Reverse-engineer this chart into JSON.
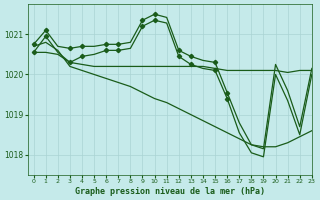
{
  "title": "Graphe pression niveau de la mer (hPa)",
  "background_color": "#c5eaea",
  "grid_color": "#aad4d4",
  "line_color": "#1a5c1a",
  "xlim": [
    -0.5,
    23
  ],
  "ylim": [
    1017.5,
    1021.75
  ],
  "yticks": [
    1018,
    1019,
    1020,
    1021
  ],
  "xticks": [
    0,
    1,
    2,
    3,
    4,
    5,
    6,
    7,
    8,
    9,
    10,
    11,
    12,
    13,
    14,
    15,
    16,
    17,
    18,
    19,
    20,
    21,
    22,
    23
  ],
  "series": {
    "line1_with_markers": [
      1020.75,
      1021.1,
      1020.7,
      1020.65,
      1020.7,
      1020.7,
      1020.75,
      1020.75,
      1020.8,
      1021.35,
      1021.5,
      1021.42,
      1020.6,
      1020.45,
      1020.35,
      1020.3,
      1019.55,
      1018.8,
      1018.25,
      1018.15,
      1020.25,
      1019.6,
      1018.7,
      1020.15
    ],
    "line2_with_markers": [
      1020.55,
      1020.95,
      1020.55,
      1020.3,
      1020.45,
      1020.5,
      1020.6,
      1020.6,
      1020.65,
      1021.2,
      1021.35,
      1021.28,
      1020.45,
      1020.25,
      1020.15,
      1020.1,
      1019.4,
      1018.55,
      1018.05,
      1017.95,
      1020.0,
      1019.35,
      1018.5,
      1020.0
    ],
    "line3_flat": [
      1020.55,
      1020.55,
      1020.5,
      1020.3,
      1020.25,
      1020.2,
      1020.2,
      1020.2,
      1020.2,
      1020.2,
      1020.2,
      1020.2,
      1020.2,
      1020.2,
      1020.2,
      1020.15,
      1020.1,
      1020.1,
      1020.1,
      1020.1,
      1020.1,
      1020.05,
      1020.1,
      1020.1
    ],
    "line4_diagonal": [
      1020.7,
      1020.8,
      1020.6,
      1020.2,
      1020.1,
      1020.0,
      1019.9,
      1019.8,
      1019.7,
      1019.55,
      1019.4,
      1019.3,
      1019.15,
      1019.0,
      1018.85,
      1018.7,
      1018.55,
      1018.4,
      1018.25,
      1018.2,
      1018.2,
      1018.3,
      1018.45,
      1018.6
    ]
  },
  "markers1_x": [
    0,
    1,
    3,
    4,
    6,
    7,
    9,
    10,
    12,
    13,
    15,
    16
  ],
  "markers2_x": [
    0,
    1,
    3,
    4,
    6,
    7,
    9,
    10,
    12,
    13,
    15,
    16
  ]
}
